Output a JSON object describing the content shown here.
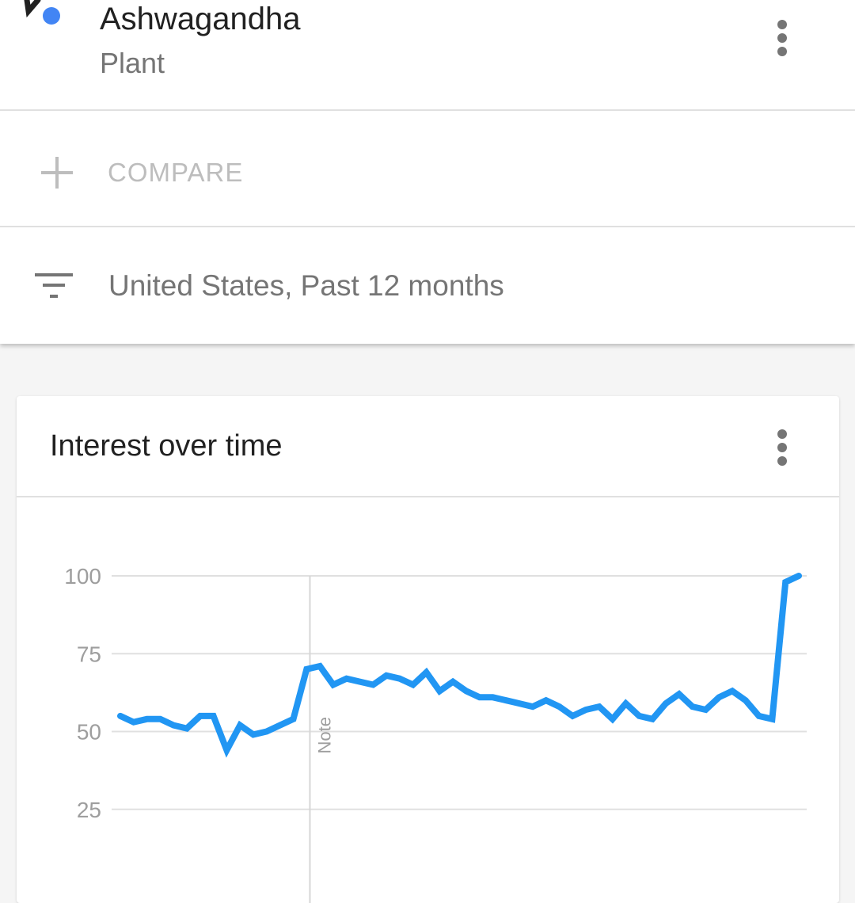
{
  "term": {
    "title": "Ashwagandha",
    "subtitle": "Plant",
    "accent_color": "#4285f4",
    "menu_icon": "more-vert-icon"
  },
  "compare": {
    "icon": "plus-icon",
    "label": "COMPARE"
  },
  "filter": {
    "icon": "filter-list-icon",
    "label": "United States, Past 12 months"
  },
  "card": {
    "title": "Interest over time",
    "menu_icon": "more-vert-icon"
  },
  "chart_data": {
    "type": "line",
    "title": "Interest over time",
    "xlabel": "",
    "ylabel": "",
    "ylim": [
      0,
      100
    ],
    "yticks": [
      100,
      75,
      50,
      25
    ],
    "grid": true,
    "line_color": "#2196f3",
    "annotation": {
      "label": "Note",
      "index": 15
    },
    "series": [
      {
        "name": "Ashwagandha",
        "values": [
          55,
          53,
          54,
          54,
          52,
          51,
          55,
          55,
          44,
          52,
          49,
          50,
          52,
          54,
          70,
          71,
          65,
          67,
          66,
          65,
          68,
          67,
          65,
          69,
          63,
          66,
          63,
          61,
          61,
          60,
          59,
          58,
          60,
          58,
          55,
          57,
          58,
          54,
          59,
          55,
          54,
          59,
          62,
          58,
          57,
          61,
          63,
          60,
          55,
          54,
          98,
          100
        ]
      }
    ]
  }
}
